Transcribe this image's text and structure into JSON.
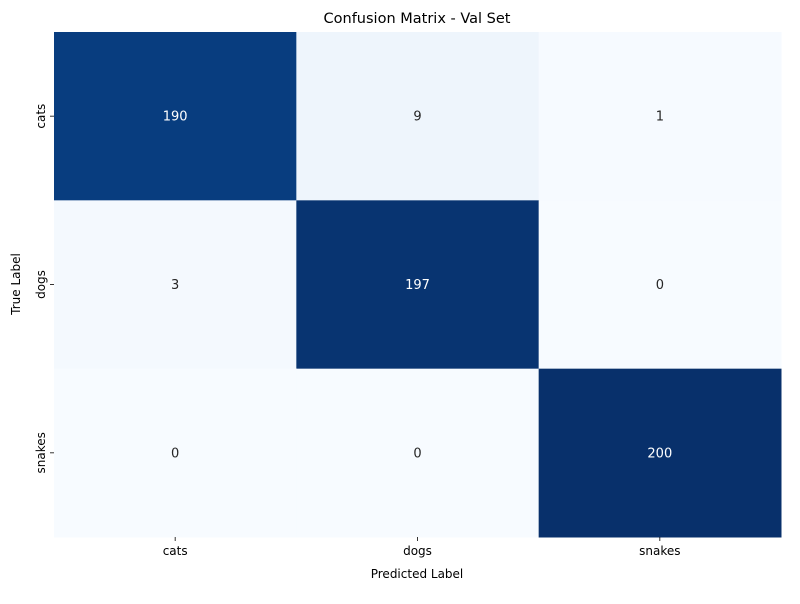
{
  "chart_data": {
    "type": "heatmap",
    "title": "Confusion Matrix - Val Set",
    "xlabel": "Predicted Label",
    "ylabel": "True Label",
    "x_categories": [
      "cats",
      "dogs",
      "snakes"
    ],
    "y_categories": [
      "cats",
      "dogs",
      "snakes"
    ],
    "values": [
      [
        190,
        9,
        1
      ],
      [
        3,
        197,
        0
      ],
      [
        0,
        0,
        200
      ]
    ],
    "colormap": "Blues",
    "colorbar": false,
    "cell_labels": true,
    "grid": false,
    "light_text_color": "#ffffff",
    "dark_text_color": "#262626"
  }
}
